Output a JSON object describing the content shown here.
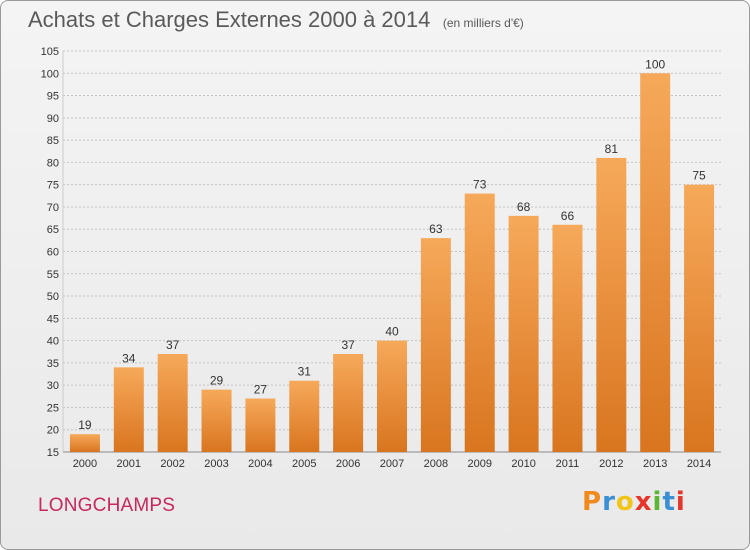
{
  "header": {
    "title": "Achats et Charges Externes 2000 à 2014",
    "unit": "(en milliers d'€)"
  },
  "commune": "LONGCHAMPS",
  "brand": {
    "name": "Proxiti",
    "letters": [
      "P",
      "r",
      "o",
      "x",
      "i",
      "t",
      "i"
    ],
    "letter_colors": [
      "#f08a1c",
      "#3b8fd4",
      "#f0c419",
      "#e8352a",
      "#5bb631",
      "#3b8fd4",
      "#e8352a"
    ]
  },
  "colors": {
    "bar_light": "#f6a95a",
    "bar_dark": "#d9751f",
    "grid": "#c4c4c4",
    "axis_text": "#333333",
    "title_text": "#5a5a5a",
    "commune_text": "#c8285c"
  },
  "chart_data": {
    "type": "bar",
    "title": "Achats et Charges Externes 2000 à 2014",
    "subtitle": "(en milliers d'€)",
    "xlabel": "",
    "ylabel": "",
    "categories": [
      "2000",
      "2001",
      "2002",
      "2003",
      "2004",
      "2005",
      "2006",
      "2007",
      "2008",
      "2009",
      "2010",
      "2011",
      "2012",
      "2013",
      "2014"
    ],
    "values": [
      19,
      34,
      37,
      29,
      27,
      31,
      37,
      40,
      63,
      73,
      68,
      66,
      81,
      100,
      75
    ],
    "ylim": [
      15,
      105
    ],
    "yticks": [
      15,
      20,
      25,
      30,
      35,
      40,
      45,
      50,
      55,
      60,
      65,
      70,
      75,
      80,
      85,
      90,
      95,
      100,
      105
    ],
    "grid": true,
    "legend": "none"
  }
}
